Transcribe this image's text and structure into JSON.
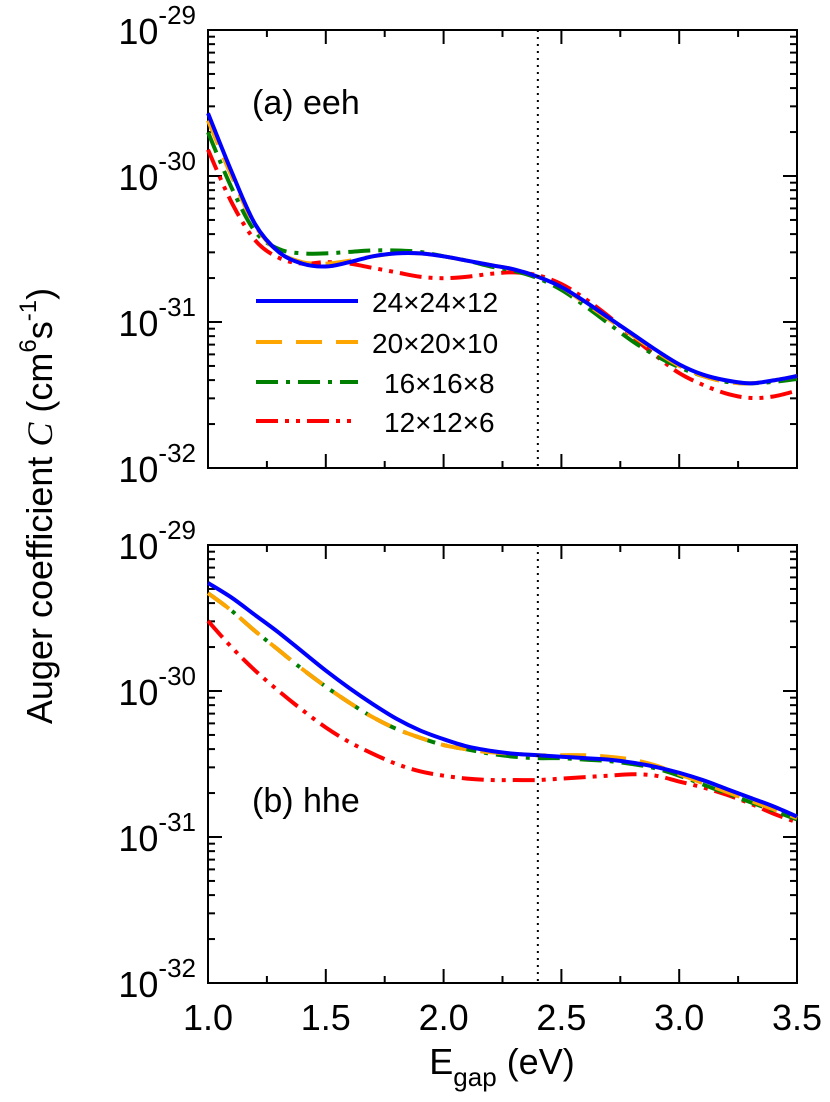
{
  "chart_data": [
    {
      "type": "line",
      "panel_label": "(a) eeh",
      "xlim": [
        1.0,
        3.5
      ],
      "ylim_log10": [
        -32,
        -29
      ],
      "y_scale": "log",
      "vline_x": 2.4,
      "series": [
        {
          "name": "24×24×12",
          "color": "#0000ff",
          "style": "solid",
          "x": [
            1.0,
            1.1,
            1.2,
            1.3,
            1.4,
            1.5,
            1.6,
            1.7,
            1.8,
            1.9,
            2.0,
            2.1,
            2.2,
            2.3,
            2.4,
            2.5,
            2.6,
            2.7,
            2.8,
            2.9,
            3.0,
            3.1,
            3.2,
            3.3,
            3.4,
            3.5
          ],
          "y_log10": [
            -29.57,
            -29.97,
            -30.33,
            -30.52,
            -30.6,
            -30.62,
            -30.59,
            -30.55,
            -30.53,
            -30.53,
            -30.55,
            -30.58,
            -30.61,
            -30.64,
            -30.69,
            -30.76,
            -30.86,
            -30.97,
            -31.08,
            -31.19,
            -31.29,
            -31.36,
            -31.4,
            -31.42,
            -31.4,
            -31.37
          ]
        },
        {
          "name": "20×20×10",
          "color": "#ffa500",
          "style": "dashed",
          "x": [
            1.0,
            1.1,
            1.2,
            1.3,
            1.4,
            1.5,
            1.6,
            1.7,
            1.8,
            1.9,
            2.0,
            2.1,
            2.2,
            2.3,
            2.4,
            2.5,
            2.6,
            2.7,
            2.8,
            2.9,
            3.0,
            3.1,
            3.2,
            3.3,
            3.4,
            3.5
          ],
          "y_log10": [
            -29.62,
            -30.0,
            -30.34,
            -30.52,
            -30.59,
            -30.6,
            -30.58,
            -30.55,
            -30.53,
            -30.53,
            -30.55,
            -30.58,
            -30.61,
            -30.64,
            -30.69,
            -30.76,
            -30.87,
            -30.98,
            -31.09,
            -31.2,
            -31.3,
            -31.37,
            -31.41,
            -31.42,
            -31.4,
            -31.37
          ]
        },
        {
          "name": "16×16×8",
          "color": "#008000",
          "style": "dashdot",
          "x": [
            1.0,
            1.1,
            1.2,
            1.3,
            1.4,
            1.5,
            1.6,
            1.7,
            1.8,
            1.9,
            2.0,
            2.1,
            2.2,
            2.3,
            2.4,
            2.5,
            2.6,
            2.7,
            2.8,
            2.9,
            3.0,
            3.1,
            3.2,
            3.3,
            3.4,
            3.5
          ],
          "y_log10": [
            -29.7,
            -30.08,
            -30.38,
            -30.5,
            -30.53,
            -30.53,
            -30.52,
            -30.51,
            -30.51,
            -30.52,
            -30.55,
            -30.58,
            -30.62,
            -30.65,
            -30.7,
            -30.78,
            -30.89,
            -31.01,
            -31.13,
            -31.23,
            -31.31,
            -31.37,
            -31.41,
            -31.42,
            -31.41,
            -31.39
          ]
        },
        {
          "name": "12×12×6",
          "color": "#ff0000",
          "style": "dashdotdot",
          "x": [
            1.0,
            1.1,
            1.2,
            1.3,
            1.4,
            1.5,
            1.6,
            1.7,
            1.8,
            1.9,
            2.0,
            2.1,
            2.2,
            2.3,
            2.4,
            2.5,
            2.6,
            2.7,
            2.8,
            2.9,
            3.0,
            3.1,
            3.2,
            3.3,
            3.4,
            3.5
          ],
          "y_log10": [
            -29.82,
            -30.18,
            -30.44,
            -30.56,
            -30.6,
            -30.59,
            -30.6,
            -30.63,
            -30.66,
            -30.69,
            -30.7,
            -30.69,
            -30.67,
            -30.66,
            -30.68,
            -30.74,
            -30.84,
            -30.96,
            -31.1,
            -31.23,
            -31.35,
            -31.43,
            -31.49,
            -31.52,
            -31.51,
            -31.47
          ]
        }
      ]
    },
    {
      "type": "line",
      "panel_label": "(b) hhe",
      "xlim": [
        1.0,
        3.5
      ],
      "ylim_log10": [
        -32,
        -29
      ],
      "y_scale": "log",
      "vline_x": 2.4,
      "series": [
        {
          "name": "24×24×12",
          "color": "#0000ff",
          "style": "solid",
          "x": [
            1.0,
            1.1,
            1.2,
            1.3,
            1.4,
            1.5,
            1.6,
            1.7,
            1.8,
            1.9,
            2.0,
            2.1,
            2.2,
            2.3,
            2.4,
            2.5,
            2.6,
            2.7,
            2.8,
            2.9,
            3.0,
            3.1,
            3.2,
            3.3,
            3.4,
            3.5
          ],
          "y_log10": [
            -29.26,
            -29.36,
            -29.48,
            -29.6,
            -29.73,
            -29.86,
            -29.98,
            -30.09,
            -30.19,
            -30.27,
            -30.33,
            -30.38,
            -30.41,
            -30.43,
            -30.44,
            -30.45,
            -30.46,
            -30.47,
            -30.49,
            -30.52,
            -30.56,
            -30.61,
            -30.67,
            -30.73,
            -30.79,
            -30.86
          ]
        },
        {
          "name": "20×20×10",
          "color": "#ffa500",
          "style": "dashed",
          "x": [
            1.0,
            1.1,
            1.2,
            1.3,
            1.4,
            1.5,
            1.6,
            1.7,
            1.8,
            1.9,
            2.0,
            2.1,
            2.2,
            2.3,
            2.4,
            2.5,
            2.6,
            2.7,
            2.8,
            2.9,
            3.0,
            3.1,
            3.2,
            3.3,
            3.4,
            3.5
          ],
          "y_log10": [
            -29.33,
            -29.45,
            -29.59,
            -29.72,
            -29.85,
            -29.97,
            -30.08,
            -30.18,
            -30.26,
            -30.32,
            -30.37,
            -30.4,
            -30.42,
            -30.43,
            -30.44,
            -30.44,
            -30.44,
            -30.45,
            -30.47,
            -30.51,
            -30.57,
            -30.63,
            -30.69,
            -30.75,
            -30.81,
            -30.87
          ]
        },
        {
          "name": "16×16×8",
          "color": "#008000",
          "style": "dashdot",
          "x": [
            1.0,
            1.1,
            1.2,
            1.3,
            1.4,
            1.5,
            1.6,
            1.7,
            1.8,
            1.9,
            2.0,
            2.1,
            2.2,
            2.3,
            2.4,
            2.5,
            2.6,
            2.7,
            2.8,
            2.9,
            3.0,
            3.1,
            3.2,
            3.3,
            3.4,
            3.5
          ],
          "y_log10": [
            -29.33,
            -29.45,
            -29.59,
            -29.72,
            -29.85,
            -29.97,
            -30.08,
            -30.18,
            -30.26,
            -30.32,
            -30.37,
            -30.4,
            -30.43,
            -30.45,
            -30.46,
            -30.46,
            -30.47,
            -30.48,
            -30.5,
            -30.53,
            -30.58,
            -30.64,
            -30.7,
            -30.76,
            -30.82,
            -30.88
          ]
        },
        {
          "name": "12×12×6",
          "color": "#ff0000",
          "style": "dashdotdot",
          "x": [
            1.0,
            1.1,
            1.2,
            1.3,
            1.4,
            1.5,
            1.6,
            1.7,
            1.8,
            1.9,
            2.0,
            2.1,
            2.2,
            2.3,
            2.4,
            2.5,
            2.6,
            2.7,
            2.8,
            2.9,
            3.0,
            3.1,
            3.2,
            3.3,
            3.4,
            3.5
          ],
          "y_log10": [
            -29.52,
            -29.7,
            -29.86,
            -30.0,
            -30.13,
            -30.25,
            -30.35,
            -30.43,
            -30.5,
            -30.55,
            -30.58,
            -30.6,
            -30.61,
            -30.61,
            -30.61,
            -30.6,
            -30.59,
            -30.58,
            -30.57,
            -30.58,
            -30.62,
            -30.66,
            -30.71,
            -30.77,
            -30.84,
            -30.9
          ]
        }
      ]
    }
  ],
  "x_ticks": [
    "1.0",
    "1.5",
    "2.0",
    "2.5",
    "3.0",
    "3.5"
  ],
  "x_tick_values": [
    1.0,
    1.5,
    2.0,
    2.5,
    3.0,
    3.5
  ],
  "y_tick_exponents": [
    -29,
    -30,
    -31,
    -32
  ],
  "y_tick_base": "10",
  "xlabel": {
    "main": "E",
    "sub": "gap",
    "rest": " (eV)"
  },
  "ylabel": {
    "prefix": "Auger coefficient ",
    "symbol": "C",
    "open": " (cm",
    "sup1": "6",
    "mid": "s",
    "sup2": "-1",
    "close": ")"
  },
  "legend": {
    "placement": "left-center of panel (a)",
    "entries": [
      "24×24×12",
      "20×20×10",
      "16×16×8",
      "12×12×6"
    ]
  }
}
